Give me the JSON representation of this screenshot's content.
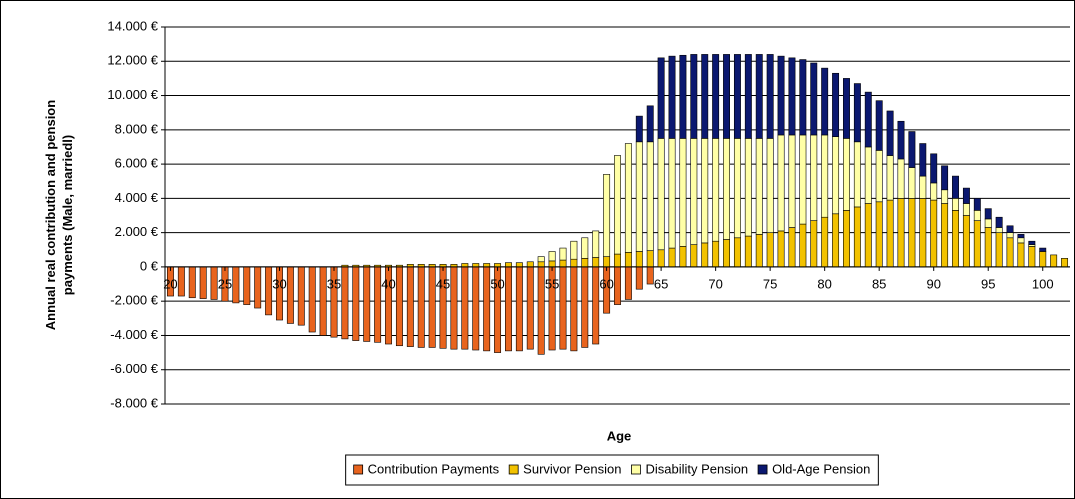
{
  "chart_data": {
    "type": "stacked-bar",
    "ylabel": "Annual real contribution and pension payments (Male, marriedl)",
    "xlabel": "Age",
    "x": [
      20,
      21,
      22,
      23,
      24,
      25,
      26,
      27,
      28,
      29,
      30,
      31,
      32,
      33,
      34,
      35,
      36,
      37,
      38,
      39,
      40,
      41,
      42,
      43,
      44,
      45,
      46,
      47,
      48,
      49,
      50,
      51,
      52,
      53,
      54,
      55,
      56,
      57,
      58,
      59,
      60,
      61,
      62,
      63,
      64,
      65,
      66,
      67,
      68,
      69,
      70,
      71,
      72,
      73,
      74,
      75,
      76,
      77,
      78,
      79,
      80,
      81,
      82,
      83,
      84,
      85,
      86,
      87,
      88,
      89,
      90,
      91,
      92,
      93,
      94,
      95,
      96,
      97,
      98,
      99,
      100,
      101,
      102
    ],
    "xlim": [
      19.5,
      102.5
    ],
    "xticks": [
      20,
      25,
      30,
      35,
      40,
      45,
      50,
      55,
      60,
      65,
      70,
      75,
      80,
      85,
      90,
      95,
      100
    ],
    "ylim": [
      -8000,
      14000
    ],
    "yticks": [
      {
        "value": -8000,
        "label": "-8.000 €"
      },
      {
        "value": -6000,
        "label": "-6.000 €"
      },
      {
        "value": -4000,
        "label": "-4.000 €"
      },
      {
        "value": -2000,
        "label": "-2.000 €"
      },
      {
        "value": 0,
        "label": "0 €"
      },
      {
        "value": 2000,
        "label": "2.000 €"
      },
      {
        "value": 4000,
        "label": "4.000 €"
      },
      {
        "value": 6000,
        "label": "6.000 €"
      },
      {
        "value": 8000,
        "label": "8.000 €"
      },
      {
        "value": 10000,
        "label": "10.000 €"
      },
      {
        "value": 12000,
        "label": "12.000 €"
      },
      {
        "value": 14000,
        "label": "14.000 €"
      }
    ],
    "grid": true,
    "legend": "bottom",
    "series": [
      {
        "name": "Contribution Payments",
        "color": "#e8641e",
        "values": [
          -1700,
          -1700,
          -1800,
          -1850,
          -1900,
          -2000,
          -2100,
          -2200,
          -2400,
          -2800,
          -3100,
          -3300,
          -3400,
          -3800,
          -4000,
          -4100,
          -4200,
          -4300,
          -4350,
          -4400,
          -4500,
          -4600,
          -4650,
          -4700,
          -4700,
          -4750,
          -4800,
          -4800,
          -4850,
          -4900,
          -5000,
          -4900,
          -4900,
          -4800,
          -5100,
          -4850,
          -4800,
          -4900,
          -4700,
          -4500,
          -2700,
          -2200,
          -1900,
          -1300,
          -1000,
          0,
          0,
          0,
          0,
          0,
          0,
          0,
          0,
          0,
          0,
          0,
          0,
          0,
          0,
          0,
          0,
          0,
          0,
          0,
          0,
          0,
          0,
          0,
          0,
          0,
          0,
          0,
          0,
          0,
          0,
          0,
          0,
          0,
          0,
          0,
          0,
          0,
          0
        ]
      },
      {
        "name": "Survivor Pension",
        "color": "#f2c200",
        "values": [
          0,
          0,
          0,
          0,
          0,
          0,
          0,
          0,
          0,
          0,
          0,
          0,
          0,
          0,
          0,
          0,
          100,
          100,
          100,
          100,
          100,
          100,
          150,
          150,
          150,
          150,
          150,
          200,
          200,
          200,
          200,
          250,
          250,
          300,
          300,
          350,
          400,
          450,
          500,
          550,
          600,
          750,
          850,
          900,
          950,
          1000,
          1100,
          1200,
          1300,
          1400,
          1500,
          1600,
          1700,
          1800,
          1900,
          2000,
          2100,
          2300,
          2500,
          2700,
          2900,
          3100,
          3300,
          3500,
          3700,
          3800,
          3900,
          4000,
          4000,
          4000,
          3900,
          3700,
          3300,
          3000,
          2700,
          2300,
          2000,
          1700,
          1400,
          1200,
          900,
          700,
          500
        ]
      },
      {
        "name": "Disability Pension",
        "color": "#ffffa6",
        "values": [
          0,
          0,
          0,
          0,
          0,
          0,
          0,
          0,
          0,
          0,
          0,
          0,
          0,
          0,
          0,
          0,
          0,
          0,
          0,
          0,
          0,
          0,
          0,
          0,
          0,
          0,
          0,
          0,
          0,
          0,
          0,
          0,
          0,
          0,
          300,
          550,
          700,
          1050,
          1200,
          1550,
          4800,
          5750,
          6350,
          6400,
          6350,
          6500,
          6400,
          6300,
          6200,
          6100,
          6000,
          5900,
          5800,
          5700,
          5600,
          5500,
          5600,
          5400,
          5200,
          5000,
          4800,
          4500,
          4200,
          3800,
          3300,
          3000,
          2600,
          2300,
          1800,
          1300,
          1000,
          800,
          700,
          700,
          600,
          500,
          300,
          300,
          300,
          100,
          0,
          0,
          0
        ]
      },
      {
        "name": "Old-Age Pension",
        "color": "#0b1870",
        "values": [
          0,
          0,
          0,
          0,
          0,
          0,
          0,
          0,
          0,
          0,
          0,
          0,
          0,
          0,
          0,
          0,
          0,
          0,
          0,
          0,
          0,
          0,
          0,
          0,
          0,
          0,
          0,
          0,
          0,
          0,
          0,
          0,
          0,
          0,
          0,
          0,
          0,
          0,
          0,
          0,
          0,
          0,
          0,
          1500,
          2100,
          4700,
          4800,
          4850,
          4900,
          4900,
          4900,
          4900,
          4900,
          4900,
          4900,
          4900,
          4600,
          4500,
          4400,
          4200,
          3900,
          3700,
          3500,
          3400,
          3200,
          2900,
          2600,
          2200,
          2100,
          1900,
          1700,
          1400,
          1300,
          900,
          700,
          600,
          600,
          400,
          200,
          200,
          200,
          0,
          0
        ]
      }
    ]
  }
}
